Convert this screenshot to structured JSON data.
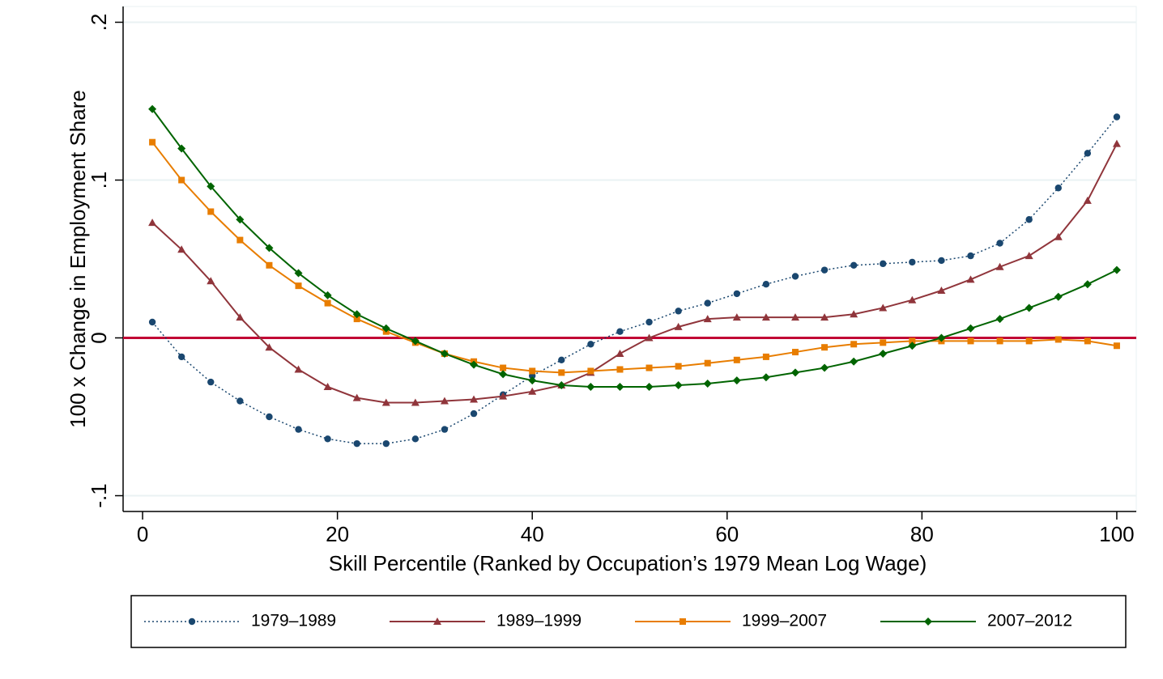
{
  "chart_data": {
    "type": "line",
    "xlabel": "Skill Percentile (Ranked by Occupation’s 1979 Mean Log Wage)",
    "ylabel": "100 x Change in Employment Share",
    "xlim": [
      -2,
      102
    ],
    "ylim": [
      -0.11,
      0.21
    ],
    "xticks": [
      0,
      20,
      40,
      60,
      80,
      100
    ],
    "yticks": [
      {
        "value": -0.1,
        "label": "-.1"
      },
      0,
      {
        "value": 0.1,
        "label": ".1"
      },
      {
        "value": 0.2,
        "label": ".2"
      }
    ],
    "grid": true,
    "reference_line": {
      "value": 0,
      "color": "#c10534"
    },
    "x": [
      1,
      4,
      7,
      10,
      13,
      16,
      19,
      22,
      25,
      28,
      31,
      34,
      37,
      40,
      43,
      46,
      49,
      52,
      55,
      58,
      61,
      64,
      67,
      70,
      73,
      76,
      79,
      82,
      85,
      88,
      91,
      94,
      97,
      100
    ],
    "series": [
      {
        "name": "1979–1989",
        "color": "#1a476f",
        "marker": "circle",
        "dash": true,
        "values": [
          0.01,
          -0.012,
          -0.028,
          -0.04,
          -0.05,
          -0.058,
          -0.064,
          -0.067,
          -0.067,
          -0.064,
          -0.058,
          -0.048,
          -0.036,
          -0.024,
          -0.014,
          -0.004,
          0.004,
          0.01,
          0.017,
          0.022,
          0.028,
          0.034,
          0.039,
          0.043,
          0.046,
          0.047,
          0.048,
          0.049,
          0.052,
          0.06,
          0.075,
          0.095,
          0.117,
          0.14
        ]
      },
      {
        "name": "1989–1999",
        "color": "#90353b",
        "marker": "triangle",
        "dash": false,
        "values": [
          0.073,
          0.056,
          0.036,
          0.013,
          -0.006,
          -0.02,
          -0.031,
          -0.038,
          -0.041,
          -0.041,
          -0.04,
          -0.039,
          -0.037,
          -0.034,
          -0.03,
          -0.022,
          -0.01,
          0.0,
          0.007,
          0.012,
          0.013,
          0.013,
          0.013,
          0.013,
          0.015,
          0.019,
          0.024,
          0.03,
          0.037,
          0.045,
          0.052,
          0.064,
          0.087,
          0.123
        ]
      },
      {
        "name": "1999–2007",
        "color": "#e87d00",
        "marker": "square",
        "dash": false,
        "values": [
          0.124,
          0.1,
          0.08,
          0.062,
          0.046,
          0.033,
          0.022,
          0.012,
          0.004,
          -0.003,
          -0.01,
          -0.015,
          -0.019,
          -0.021,
          -0.022,
          -0.021,
          -0.02,
          -0.019,
          -0.018,
          -0.016,
          -0.014,
          -0.012,
          -0.009,
          -0.006,
          -0.004,
          -0.003,
          -0.002,
          -0.002,
          -0.002,
          -0.002,
          -0.002,
          -0.001,
          -0.002,
          -0.005
        ]
      },
      {
        "name": "2007–2012",
        "color": "#006400",
        "marker": "diamond",
        "dash": false,
        "values": [
          0.145,
          0.12,
          0.096,
          0.075,
          0.057,
          0.041,
          0.027,
          0.015,
          0.006,
          -0.002,
          -0.01,
          -0.017,
          -0.023,
          -0.027,
          -0.03,
          -0.031,
          -0.031,
          -0.031,
          -0.03,
          -0.029,
          -0.027,
          -0.025,
          -0.022,
          -0.019,
          -0.015,
          -0.01,
          -0.005,
          0.0,
          0.006,
          0.012,
          0.019,
          0.026,
          0.034,
          0.043
        ]
      }
    ]
  }
}
